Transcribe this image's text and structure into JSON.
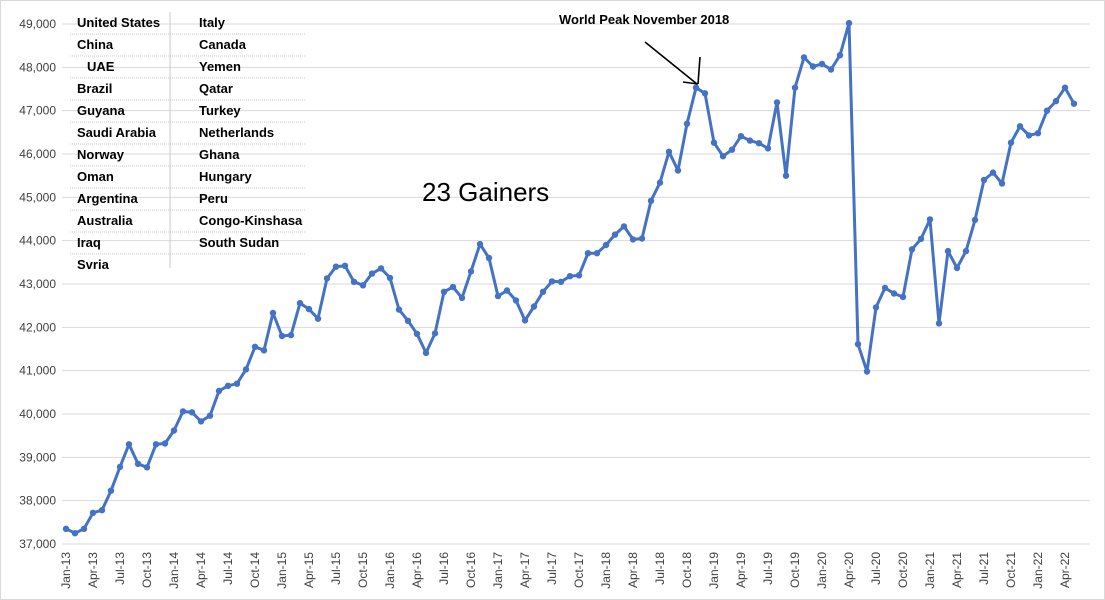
{
  "chart_data": {
    "type": "line",
    "title": "",
    "xlabel": "",
    "ylabel": "",
    "ylim": [
      37000,
      49000
    ],
    "yticks": [
      "37,000",
      "38,000",
      "39,000",
      "40,000",
      "41,000",
      "42,000",
      "43,000",
      "44,000",
      "45,000",
      "46,000",
      "47,000",
      "48,000",
      "49,000"
    ],
    "xtick_labels": [
      "Jan-13",
      "Apr-13",
      "Jul-13",
      "Oct-13",
      "Jan-14",
      "Apr-14",
      "Jul-14",
      "Oct-14",
      "Jan-15",
      "Apr-15",
      "Jul-15",
      "Oct-15",
      "Jan-16",
      "Apr-16",
      "Jul-16",
      "Oct-16",
      "Jan-17",
      "Apr-17",
      "Jul-17",
      "Oct-17",
      "Jan-18",
      "Apr-18",
      "Jul-18",
      "Oct-18",
      "Jan-19",
      "Apr-19",
      "Jul-19",
      "Oct-19",
      "Jan-20",
      "Apr-20",
      "Jul-20",
      "Oct-20",
      "Jan-21",
      "Apr-21",
      "Jul-21",
      "Oct-21",
      "Jan-22",
      "Apr-22"
    ],
    "grid": true,
    "series": [
      {
        "color": "#4472c4",
        "values": [
          37350,
          37250,
          37350,
          37720,
          37780,
          38230,
          38780,
          39300,
          38850,
          38770,
          39300,
          39320,
          39620,
          40060,
          40040,
          39830,
          39960,
          40530,
          40650,
          40700,
          41030,
          41550,
          41470,
          42330,
          41800,
          41820,
          42560,
          42420,
          42200,
          43130,
          43400,
          43420,
          43050,
          42970,
          43240,
          43360,
          43140,
          42410,
          42150,
          41850,
          41410,
          41860,
          42820,
          42930,
          42680,
          43290,
          43920,
          43600,
          42720,
          42850,
          42620,
          42160,
          42480,
          42820,
          43060,
          43050,
          43180,
          43200,
          43710,
          43710,
          43900,
          44140,
          44330,
          44030,
          44050,
          44920,
          45340,
          46050,
          45620,
          46700,
          47530,
          47400,
          46260,
          45950,
          46100,
          46410,
          46310,
          46250,
          46130,
          47190,
          45500,
          47530,
          48230,
          48020,
          48080,
          47950,
          48280,
          49020,
          41610,
          40980,
          42460,
          42910,
          42780,
          42700,
          43800,
          44040,
          44490,
          42090,
          43760,
          43370,
          43760,
          44480,
          45400,
          45570,
          45320,
          46260,
          46640,
          46430,
          46480,
          47000,
          47220,
          47530,
          47160
        ]
      }
    ],
    "annotations": {
      "peak_label": "World Peak November 2018",
      "gainers_label": "23 Gainers"
    },
    "legend_table": {
      "col1": [
        "United States",
        "China",
        "UAE",
        "Brazil",
        "Guyana",
        "Saudi Arabia",
        "Norway",
        "Oman",
        "Argentina",
        "Australia",
        "Iraq",
        "Svria"
      ],
      "col2": [
        "Italy",
        "Canada",
        "Yemen",
        "Qatar",
        "Turkey",
        "Netherlands",
        "Ghana",
        "Hungary",
        "Peru",
        "Congo-Kinshasa",
        "South Sudan"
      ]
    }
  }
}
